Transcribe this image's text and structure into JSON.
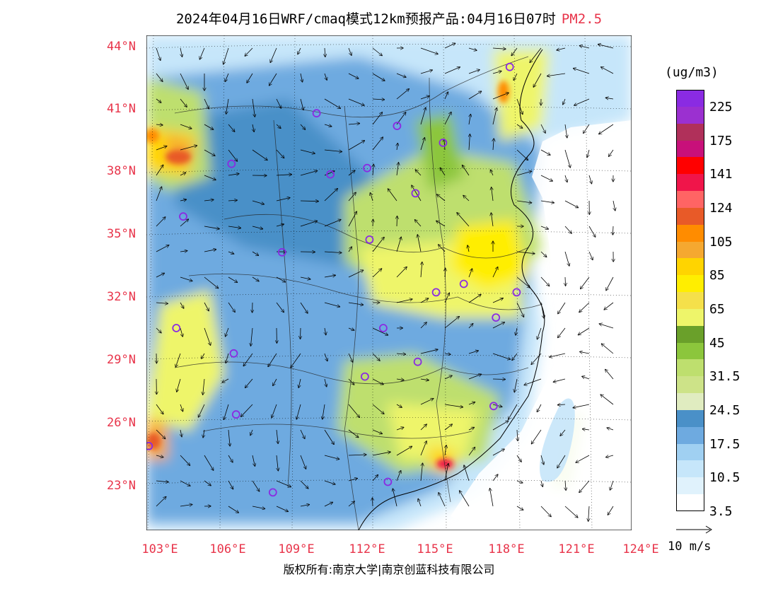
{
  "title": {
    "text": "2024年04月16日WRF/cmaq模式12km预报产品:04月16日07时",
    "pollutant": "PM2.5"
  },
  "map": {
    "lat_labels": [
      "44°N",
      "41°N",
      "38°N",
      "35°N",
      "32°N",
      "29°N",
      "26°N",
      "23°N"
    ],
    "lon_labels": [
      "103°E",
      "106°E",
      "109°E",
      "112°E",
      "115°E",
      "118°E",
      "121°E",
      "124°E"
    ],
    "lon_range": [
      102.9,
      124.0
    ],
    "lat_range": [
      21.0,
      44.5
    ]
  },
  "colorbar": {
    "unit": "(ug/m3)",
    "colors": [
      "#8a2be2",
      "#9b30d0",
      "#b0305a",
      "#c8107a",
      "#ff0000",
      "#f0154a",
      "#ff6464",
      "#e85a28",
      "#ff8c00",
      "#f5a830",
      "#ffd400",
      "#ffee00",
      "#f5e04a",
      "#eef56a",
      "#6aa02a",
      "#8cc63c",
      "#bedf6e",
      "#cde388",
      "#e0ecc0",
      "#4a90c8",
      "#6eaae0",
      "#a0d0f2",
      "#c6e6fa",
      "#e0f2fc",
      "#ffffff"
    ],
    "labels": [
      "225",
      "175",
      "141",
      "124",
      "105",
      "85",
      "65",
      "45",
      "31.5",
      "24.5",
      "17.5",
      "10.5",
      "3.5"
    ]
  },
  "vector_legend": "10 m/s",
  "copyright": "版权所有:南京大学|南京创蓝科技有限公司",
  "cities": [
    {
      "lon": 118.7,
      "lat": 43.0
    },
    {
      "lon": 110.3,
      "lat": 40.8
    },
    {
      "lon": 113.8,
      "lat": 40.2
    },
    {
      "lon": 115.8,
      "lat": 39.4
    },
    {
      "lon": 106.6,
      "lat": 38.4
    },
    {
      "lon": 110.9,
      "lat": 37.9
    },
    {
      "lon": 112.5,
      "lat": 38.2
    },
    {
      "lon": 114.6,
      "lat": 37.0
    },
    {
      "lon": 104.5,
      "lat": 35.9
    },
    {
      "lon": 112.6,
      "lat": 34.8
    },
    {
      "lon": 108.8,
      "lat": 34.2
    },
    {
      "lon": 116.7,
      "lat": 32.7
    },
    {
      "lon": 115.5,
      "lat": 32.3
    },
    {
      "lon": 119.0,
      "lat": 32.3
    },
    {
      "lon": 118.1,
      "lat": 31.1
    },
    {
      "lon": 104.2,
      "lat": 30.6
    },
    {
      "lon": 113.2,
      "lat": 30.6
    },
    {
      "lon": 106.7,
      "lat": 29.4
    },
    {
      "lon": 114.7,
      "lat": 29.0
    },
    {
      "lon": 112.4,
      "lat": 28.3
    },
    {
      "lon": 106.8,
      "lat": 26.5
    },
    {
      "lon": 118.0,
      "lat": 26.9
    },
    {
      "lon": 103.0,
      "lat": 25.0
    },
    {
      "lon": 108.4,
      "lat": 22.8
    },
    {
      "lon": 113.4,
      "lat": 23.3
    }
  ]
}
